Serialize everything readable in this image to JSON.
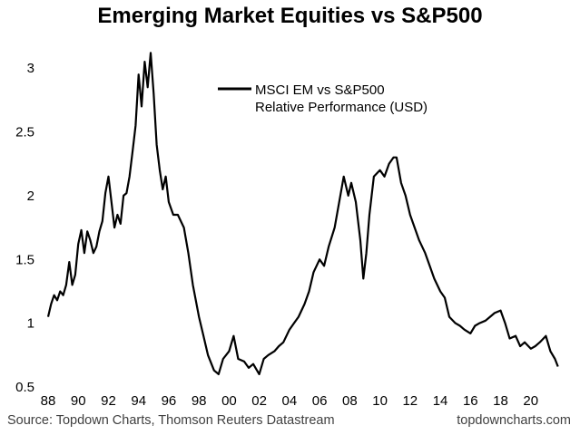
{
  "title": "Emerging Market Equities vs S&P500",
  "footer": {
    "source": "Source: Topdown Charts, Thomson Reuters Datastream",
    "site": "topdowncharts.com"
  },
  "chart_data": {
    "type": "line",
    "title": "Emerging Market Equities vs S&P500",
    "xlabel": "",
    "ylabel": "",
    "xlim": [
      1988,
      2022.0
    ],
    "ylim": [
      0.5,
      3.25
    ],
    "y_ticks": [
      "0.5",
      "1",
      "1.5",
      "2",
      "2.5",
      "3"
    ],
    "x_ticks": [
      "88",
      "90",
      "92",
      "94",
      "96",
      "98",
      "00",
      "02",
      "04",
      "06",
      "08",
      "10",
      "12",
      "14",
      "16",
      "18",
      "20"
    ],
    "grid": false,
    "legend_position": "top-center",
    "series": [
      {
        "name": "MSCI EM vs S&P500",
        "name_line2": "Relative Performance (USD)",
        "color": "#000000",
        "x": [
          1988.0,
          1988.2,
          1988.4,
          1988.6,
          1988.8,
          1989.0,
          1989.2,
          1989.4,
          1989.6,
          1989.8,
          1990.0,
          1990.2,
          1990.4,
          1990.6,
          1990.8,
          1991.0,
          1991.2,
          1991.4,
          1991.6,
          1991.8,
          1992.0,
          1992.2,
          1992.4,
          1992.6,
          1992.8,
          1993.0,
          1993.2,
          1993.4,
          1993.6,
          1993.8,
          1994.0,
          1994.2,
          1994.4,
          1994.6,
          1994.8,
          1995.0,
          1995.2,
          1995.4,
          1995.6,
          1995.8,
          1996.0,
          1996.3,
          1996.6,
          1997.0,
          1997.3,
          1997.6,
          1998.0,
          1998.3,
          1998.6,
          1999.0,
          1999.3,
          1999.6,
          2000.0,
          2000.3,
          2000.6,
          2001.0,
          2001.3,
          2001.6,
          2002.0,
          2002.3,
          2002.6,
          2003.0,
          2003.3,
          2003.6,
          2004.0,
          2004.3,
          2004.6,
          2005.0,
          2005.3,
          2005.6,
          2006.0,
          2006.3,
          2006.6,
          2007.0,
          2007.3,
          2007.6,
          2007.9,
          2008.1,
          2008.4,
          2008.7,
          2008.9,
          2009.1,
          2009.3,
          2009.6,
          2010.0,
          2010.3,
          2010.6,
          2010.9,
          2011.1,
          2011.4,
          2011.7,
          2012.0,
          2012.3,
          2012.6,
          2013.0,
          2013.3,
          2013.6,
          2014.0,
          2014.3,
          2014.6,
          2015.0,
          2015.3,
          2015.6,
          2016.0,
          2016.3,
          2016.6,
          2017.0,
          2017.3,
          2017.6,
          2018.0,
          2018.3,
          2018.6,
          2019.0,
          2019.3,
          2019.6,
          2020.0,
          2020.3,
          2020.6,
          2021.0,
          2021.3,
          2021.6,
          2021.8
        ],
        "values": [
          1.05,
          1.15,
          1.22,
          1.18,
          1.25,
          1.22,
          1.3,
          1.48,
          1.3,
          1.38,
          1.62,
          1.73,
          1.55,
          1.72,
          1.65,
          1.55,
          1.6,
          1.72,
          1.8,
          2.02,
          2.15,
          1.95,
          1.75,
          1.85,
          1.78,
          2.0,
          2.02,
          2.15,
          2.35,
          2.55,
          2.95,
          2.7,
          3.05,
          2.85,
          3.12,
          2.8,
          2.4,
          2.2,
          2.05,
          2.15,
          1.95,
          1.85,
          1.85,
          1.75,
          1.55,
          1.3,
          1.05,
          0.9,
          0.75,
          0.63,
          0.6,
          0.72,
          0.78,
          0.9,
          0.72,
          0.7,
          0.65,
          0.68,
          0.6,
          0.72,
          0.75,
          0.78,
          0.82,
          0.85,
          0.95,
          1.0,
          1.05,
          1.15,
          1.25,
          1.4,
          1.5,
          1.45,
          1.6,
          1.75,
          1.95,
          2.15,
          2.0,
          2.1,
          1.95,
          1.65,
          1.35,
          1.55,
          1.85,
          2.15,
          2.2,
          2.15,
          2.25,
          2.3,
          2.3,
          2.1,
          2.0,
          1.85,
          1.75,
          1.65,
          1.55,
          1.45,
          1.35,
          1.25,
          1.2,
          1.05,
          1.0,
          0.98,
          0.95,
          0.92,
          0.98,
          1.0,
          1.02,
          1.05,
          1.08,
          1.1,
          1.0,
          0.88,
          0.9,
          0.82,
          0.85,
          0.8,
          0.82,
          0.85,
          0.9,
          0.78,
          0.72,
          0.66
        ]
      }
    ]
  }
}
